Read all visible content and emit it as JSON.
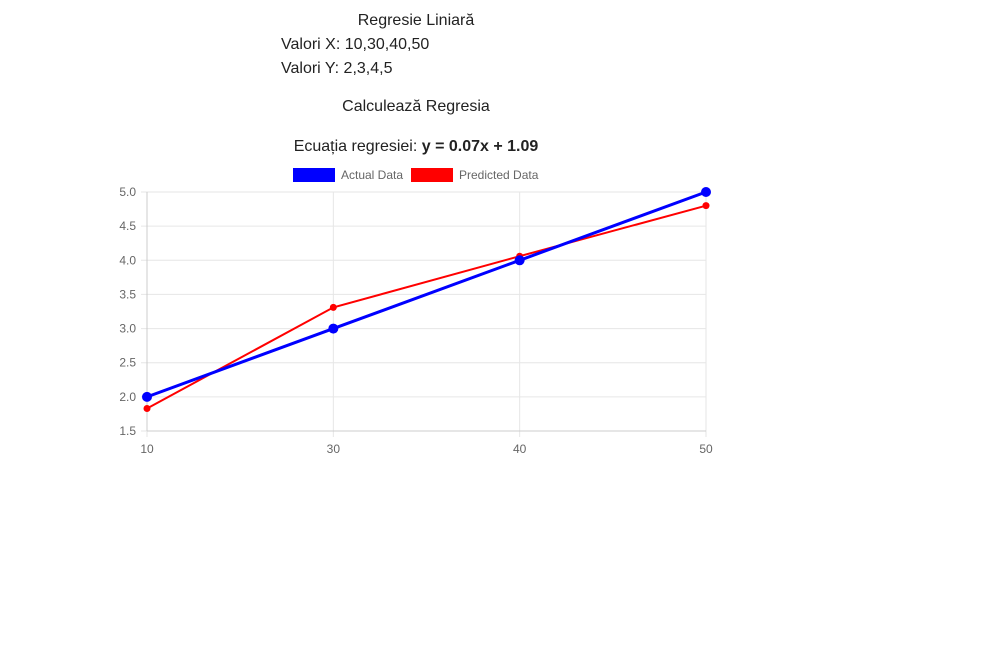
{
  "page": {
    "title": "Regresie Liniară",
    "x_values_label": "Valori X: 10,30,40,50",
    "y_values_label": "Valori Y: 2,3,4,5",
    "calculate_button": "Calculează Regresia",
    "equation_prefix": "Ecuația regresiei: ",
    "equation": "y = 0.07x + 1.09"
  },
  "colors": {
    "actual": "#0000ff",
    "predicted": "#ff0000",
    "grid": "#e6e6e6",
    "tick_text": "#666666"
  },
  "chart_data": {
    "type": "line",
    "x": [
      10,
      30,
      40,
      50
    ],
    "series": [
      {
        "name": "Actual Data",
        "values": [
          2,
          3,
          4,
          5
        ]
      },
      {
        "name": "Predicted Data",
        "values": [
          1.83,
          3.31,
          4.06,
          4.8
        ]
      }
    ],
    "xticks": [
      "10",
      "30",
      "40",
      "50"
    ],
    "yticks": [
      "1.5",
      "2.0",
      "2.5",
      "3.0",
      "3.5",
      "4.0",
      "4.5",
      "5.0"
    ],
    "ylim": [
      1.5,
      5.0
    ],
    "xlim": [
      10,
      50
    ],
    "x_scale": "category",
    "grid": true,
    "legend_position": "top"
  }
}
